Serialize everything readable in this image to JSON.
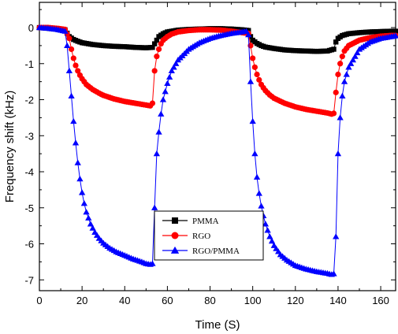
{
  "chart_data": {
    "type": "line",
    "title": "",
    "xlabel": "Time (S)",
    "ylabel": "Frequency shift (kHz)",
    "xlim": [
      0,
      167
    ],
    "ylim": [
      -7.3,
      0.7
    ],
    "xticks": [
      0,
      20,
      40,
      60,
      80,
      100,
      120,
      140,
      160
    ],
    "yticks": [
      -7,
      -6,
      -5,
      -4,
      -3,
      -2,
      -1,
      0
    ],
    "xtick_labels": [
      "0",
      "20",
      "40",
      "60",
      "80",
      "100",
      "120",
      "140",
      "160"
    ],
    "ytick_labels": [
      "-7",
      "-6",
      "-5",
      "-4",
      "-3",
      "-2",
      "-1",
      "0"
    ],
    "grid": false,
    "legend_position": "bottom-center",
    "series": [
      {
        "name": "PMMA",
        "color": "#000000",
        "marker": "square",
        "x": [
          0,
          4,
          8,
          12,
          14,
          16,
          18,
          20,
          25,
          30,
          35,
          40,
          45,
          50,
          53,
          54,
          55,
          56,
          58,
          60,
          65,
          70,
          75,
          80,
          85,
          90,
          95,
          98,
          99,
          100,
          102,
          104,
          106,
          110,
          115,
          120,
          125,
          130,
          135,
          138,
          139,
          140,
          142,
          145,
          150,
          155,
          160,
          165,
          167
        ],
        "values": [
          0.0,
          -0.02,
          -0.04,
          -0.06,
          -0.25,
          -0.33,
          -0.38,
          -0.42,
          -0.47,
          -0.5,
          -0.52,
          -0.53,
          -0.55,
          -0.56,
          -0.55,
          -0.45,
          -0.35,
          -0.25,
          -0.17,
          -0.12,
          -0.07,
          -0.05,
          -0.04,
          -0.03,
          -0.03,
          -0.04,
          -0.06,
          -0.08,
          -0.25,
          -0.35,
          -0.44,
          -0.5,
          -0.54,
          -0.58,
          -0.62,
          -0.64,
          -0.65,
          -0.66,
          -0.65,
          -0.6,
          -0.4,
          -0.3,
          -0.22,
          -0.17,
          -0.14,
          -0.12,
          -0.11,
          -0.1,
          -0.1
        ]
      },
      {
        "name": "RGO",
        "color": "#ff0000",
        "marker": "circle",
        "x": [
          0,
          4,
          8,
          12,
          14,
          15,
          16,
          17,
          18,
          19,
          20,
          22,
          25,
          28,
          30,
          35,
          40,
          45,
          50,
          52,
          53,
          54,
          55,
          56,
          57,
          58,
          60,
          62,
          65,
          70,
          75,
          80,
          85,
          90,
          95,
          98,
          99,
          100,
          101,
          102,
          103,
          104,
          105,
          106,
          108,
          110,
          115,
          120,
          125,
          130,
          135,
          137,
          138,
          139,
          140,
          141,
          142,
          143,
          145,
          150,
          155,
          160,
          165,
          167
        ],
        "values": [
          0.0,
          0.0,
          -0.02,
          -0.05,
          -0.3,
          -0.6,
          -0.85,
          -1.05,
          -1.2,
          -1.32,
          -1.42,
          -1.58,
          -1.72,
          -1.82,
          -1.88,
          -1.98,
          -2.05,
          -2.1,
          -2.15,
          -2.17,
          -2.1,
          -1.2,
          -0.8,
          -0.6,
          -0.45,
          -0.35,
          -0.25,
          -0.18,
          -0.12,
          -0.08,
          -0.06,
          -0.06,
          -0.07,
          -0.1,
          -0.14,
          -0.16,
          -0.5,
          -0.85,
          -1.1,
          -1.3,
          -1.45,
          -1.58,
          -1.67,
          -1.75,
          -1.87,
          -1.96,
          -2.1,
          -2.2,
          -2.27,
          -2.32,
          -2.37,
          -2.4,
          -2.38,
          -1.8,
          -1.3,
          -1.0,
          -0.8,
          -0.65,
          -0.5,
          -0.35,
          -0.28,
          -0.24,
          -0.22,
          -0.22
        ]
      },
      {
        "name": "RGO/PMMA",
        "color": "#0000ff",
        "marker": "triangle",
        "x": [
          0,
          4,
          8,
          12,
          13,
          14,
          15,
          16,
          17,
          18,
          19,
          20,
          21,
          22,
          24,
          26,
          28,
          30,
          33,
          36,
          40,
          44,
          48,
          50,
          52,
          53,
          54,
          55,
          56,
          57,
          58,
          60,
          62,
          65,
          70,
          75,
          80,
          85,
          90,
          95,
          97,
          98,
          99,
          100,
          101,
          102,
          103,
          104,
          105,
          106,
          108,
          110,
          113,
          116,
          120,
          125,
          130,
          135,
          137,
          138,
          139,
          140,
          141,
          142,
          143,
          145,
          148,
          150,
          155,
          160,
          165,
          167
        ],
        "values": [
          0.0,
          -0.02,
          -0.05,
          -0.1,
          -0.5,
          -1.2,
          -1.9,
          -2.6,
          -3.2,
          -3.75,
          -4.2,
          -4.58,
          -4.88,
          -5.12,
          -5.45,
          -5.68,
          -5.85,
          -5.98,
          -6.12,
          -6.22,
          -6.32,
          -6.42,
          -6.5,
          -6.55,
          -6.57,
          -6.55,
          -5.0,
          -3.5,
          -2.9,
          -2.4,
          -2.0,
          -1.55,
          -1.2,
          -0.9,
          -0.6,
          -0.42,
          -0.3,
          -0.22,
          -0.16,
          -0.12,
          -0.1,
          -0.2,
          -1.5,
          -2.6,
          -3.5,
          -4.15,
          -4.6,
          -4.95,
          -5.22,
          -5.45,
          -5.8,
          -6.05,
          -6.3,
          -6.45,
          -6.6,
          -6.7,
          -6.77,
          -6.82,
          -6.85,
          -6.83,
          -5.8,
          -3.5,
          -2.5,
          -1.9,
          -1.5,
          -1.1,
          -0.8,
          -0.6,
          -0.4,
          -0.3,
          -0.25,
          -0.23
        ]
      }
    ]
  }
}
